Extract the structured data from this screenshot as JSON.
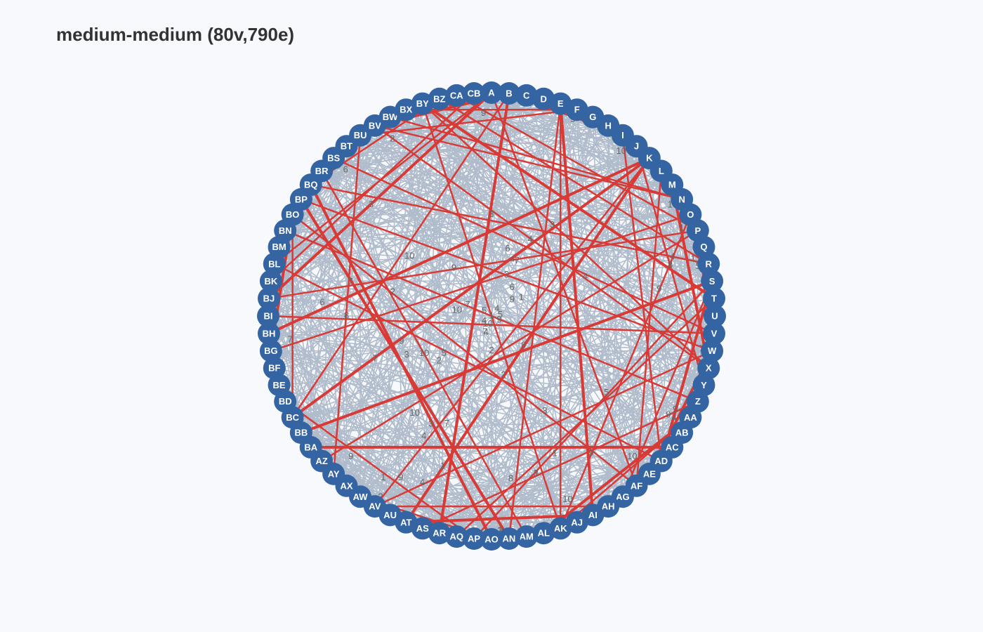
{
  "title": "medium-medium (80v,790e)",
  "colors": {
    "background": "#f8f9fc",
    "node_fill": "#3564a3",
    "node_label": "#ffffff",
    "edge_default": "#b0bccb",
    "edge_highlight": "#d83a36",
    "edge_label": "#666666"
  },
  "nodes": [
    "A",
    "B",
    "C",
    "D",
    "E",
    "F",
    "G",
    "H",
    "I",
    "J",
    "K",
    "L",
    "M",
    "N",
    "O",
    "P",
    "Q",
    "R",
    "S",
    "T",
    "U",
    "V",
    "W",
    "X",
    "Y",
    "Z",
    "AA",
    "AB",
    "AC",
    "AD",
    "AE",
    "AF",
    "AG",
    "AH",
    "AI",
    "AJ",
    "AK",
    "AL",
    "AM",
    "AN",
    "AO",
    "AP",
    "AQ",
    "AR",
    "AS",
    "AT",
    "AU",
    "AV",
    "AW",
    "AX",
    "AY",
    "AZ",
    "BA",
    "BB",
    "BC",
    "BD",
    "BE",
    "BF",
    "BG",
    "BH",
    "BI",
    "BJ",
    "BK",
    "BL",
    "BM",
    "BN",
    "BO",
    "BP",
    "BQ",
    "BR",
    "BS",
    "BT",
    "BU",
    "BV",
    "BW",
    "BX",
    "BY",
    "BZ",
    "CA",
    "CB"
  ]
}
